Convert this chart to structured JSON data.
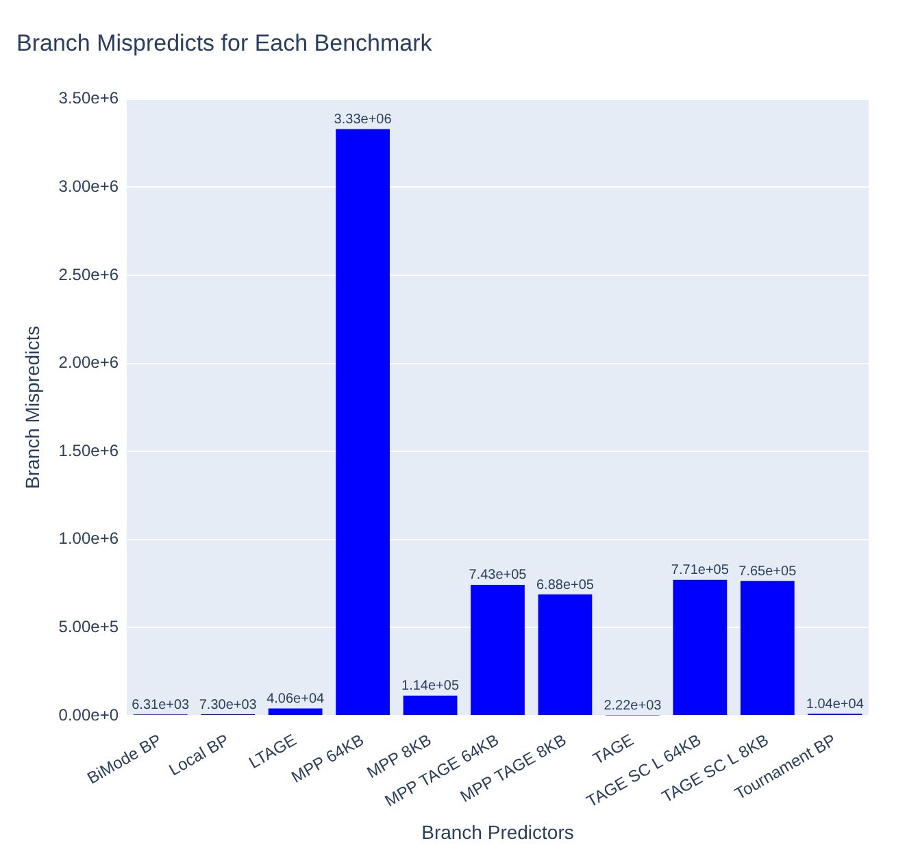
{
  "chart_data": {
    "type": "bar",
    "title": "Branch Mispredicts for Each Benchmark",
    "xlabel": "Branch Predictors",
    "ylabel": "Branch Mispredicts",
    "categories": [
      "BiMode BP",
      "Local BP",
      "LTAGE",
      "MPP 64KB",
      "MPP 8KB",
      "MPP TAGE 64KB",
      "MPP TAGE 8KB",
      "TAGE",
      "TAGE SC L 64KB",
      "TAGE SC L 8KB",
      "Tournament BP"
    ],
    "values": [
      6310,
      7300,
      40600,
      3330000,
      114000,
      743000,
      688000,
      2220,
      771000,
      765000,
      10400
    ],
    "value_labels": [
      "6.31e+03",
      "7.30e+03",
      "4.06e+04",
      "3.33e+06",
      "1.14e+05",
      "7.43e+05",
      "6.88e+05",
      "2.22e+03",
      "7.71e+05",
      "7.65e+05",
      "1.04e+04"
    ],
    "color": "#0000ff",
    "ylim": [
      0,
      3500000
    ],
    "yticks": [
      {
        "value": 0,
        "label": "0.00e+0"
      },
      {
        "value": 500000,
        "label": "5.00e+5"
      },
      {
        "value": 1000000,
        "label": "1.00e+6"
      },
      {
        "value": 1500000,
        "label": "1.50e+6"
      },
      {
        "value": 2000000,
        "label": "2.00e+6"
      },
      {
        "value": 2500000,
        "label": "2.50e+6"
      },
      {
        "value": 3000000,
        "label": "3.00e+6"
      },
      {
        "value": 3500000,
        "label": "3.50e+6"
      }
    ],
    "grid": "y",
    "legend": false
  }
}
